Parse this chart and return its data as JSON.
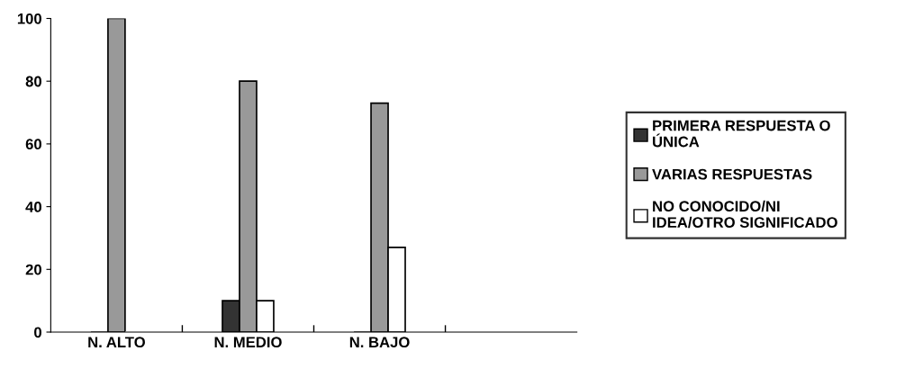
{
  "chart_data": {
    "type": "bar",
    "categories": [
      "N. ALTO",
      "N. MEDIO",
      "N. BAJO",
      null
    ],
    "series": [
      {
        "name": "PRIMERA RESPUESTA O\nÚNICA",
        "color": "#333333",
        "values": [
          0,
          10,
          0,
          null
        ]
      },
      {
        "name": "VARIAS RESPUESTAS",
        "color": "#999999",
        "values": [
          100,
          80,
          73,
          null
        ]
      },
      {
        "name": "NO CONOCIDO/NI\nIDEA/OTRO SIGNIFICADO",
        "color": "#ffffff",
        "values": [
          0,
          10,
          27,
          null
        ]
      }
    ],
    "ylim": [
      0,
      100
    ],
    "yticks": [
      0,
      20,
      40,
      60,
      80,
      100
    ],
    "grid": false,
    "legend": "right"
  }
}
